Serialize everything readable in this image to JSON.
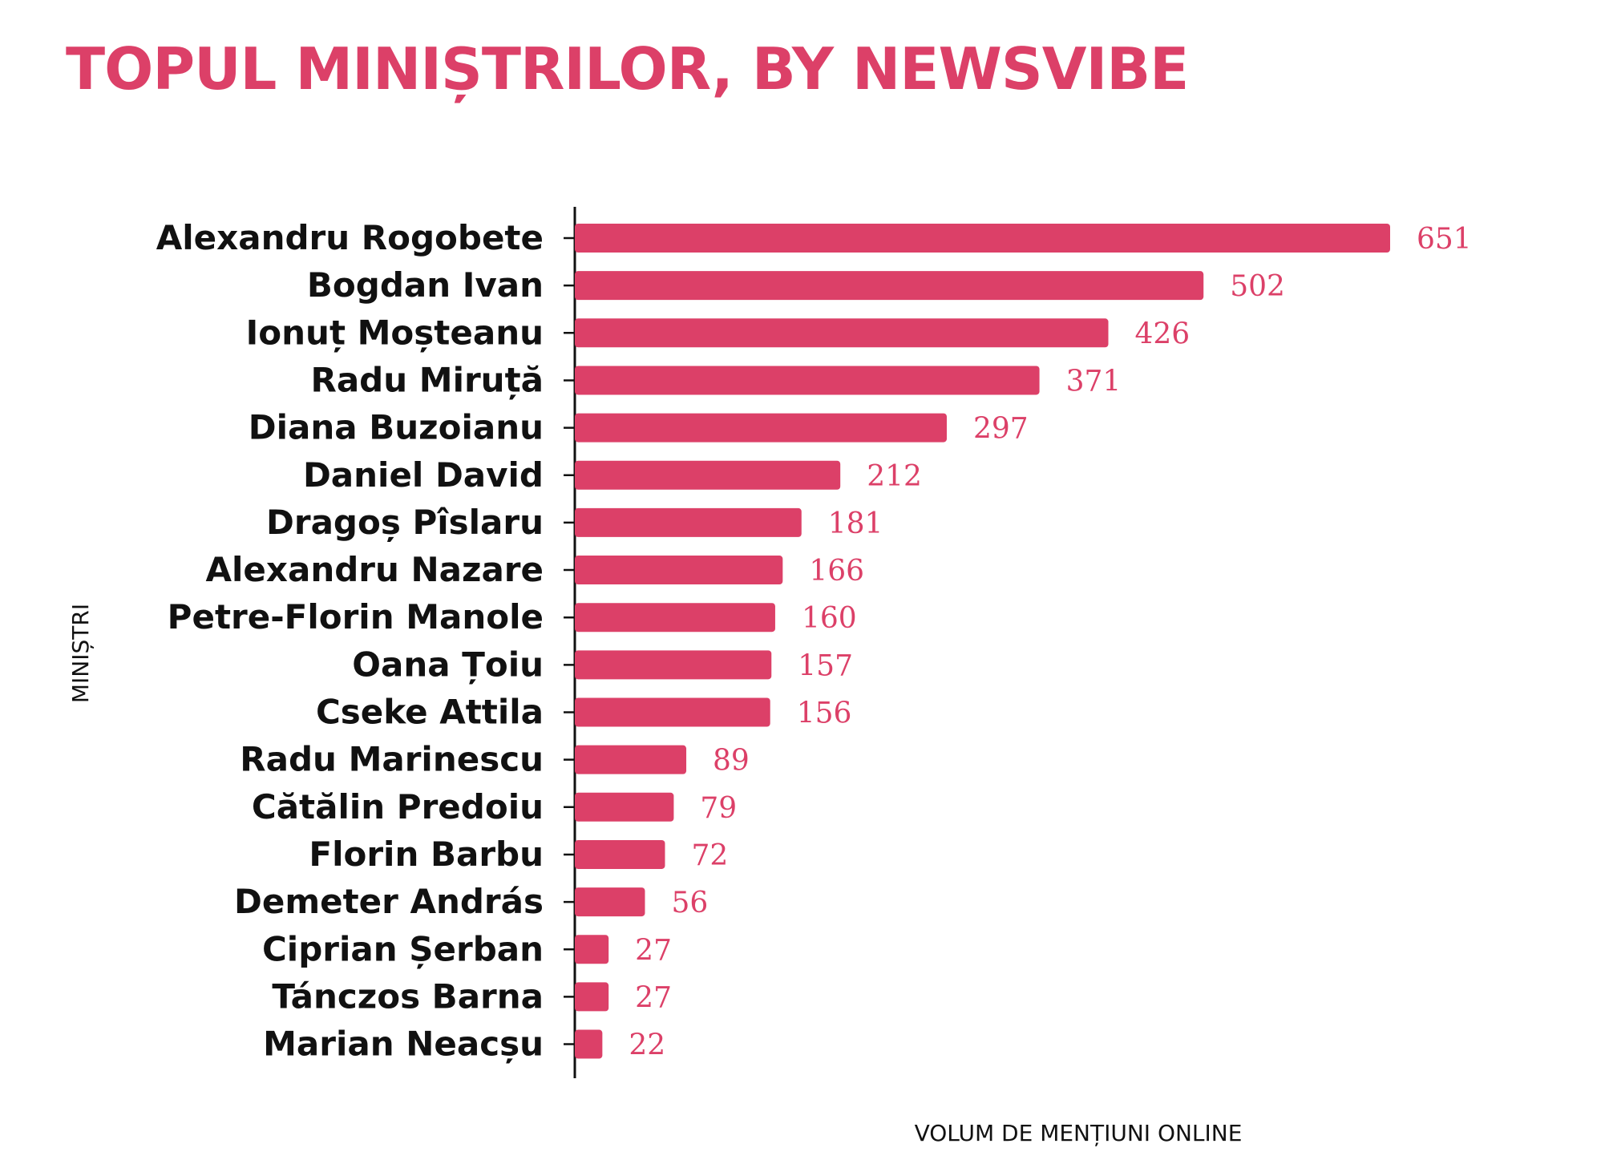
{
  "title": "TOPUL MINIȘTRILOR, BY NEWSVIBE",
  "chart_data": {
    "type": "bar",
    "orientation": "horizontal",
    "categories": [
      "Alexandru Rogobete",
      "Bogdan Ivan",
      "Ionuț Moșteanu",
      "Radu Miruță",
      "Diana Buzoianu",
      "Daniel David",
      "Dragoș Pîslaru",
      "Alexandru Nazare",
      "Petre-Florin Manole",
      "Oana Țoiu",
      "Cseke Attila",
      "Radu Marinescu",
      "Cătălin Predoiu",
      "Florin Barbu",
      "Demeter András",
      "Ciprian Șerban",
      "Tánczos Barna",
      "Marian Neacșu"
    ],
    "values": [
      651,
      502,
      426,
      371,
      297,
      212,
      181,
      166,
      160,
      157,
      156,
      89,
      79,
      72,
      56,
      27,
      27,
      22
    ],
    "xlabel": "VOLUM DE MENȚIUNI ONLINE",
    "ylabel": "MINIȘTRI",
    "xlim": [
      0,
      651
    ],
    "grid": false,
    "data_labels": true,
    "colors": {
      "bar": "#dc4068",
      "value_label": "#dc4068",
      "title": "#dc4068",
      "text": "#111111"
    }
  }
}
